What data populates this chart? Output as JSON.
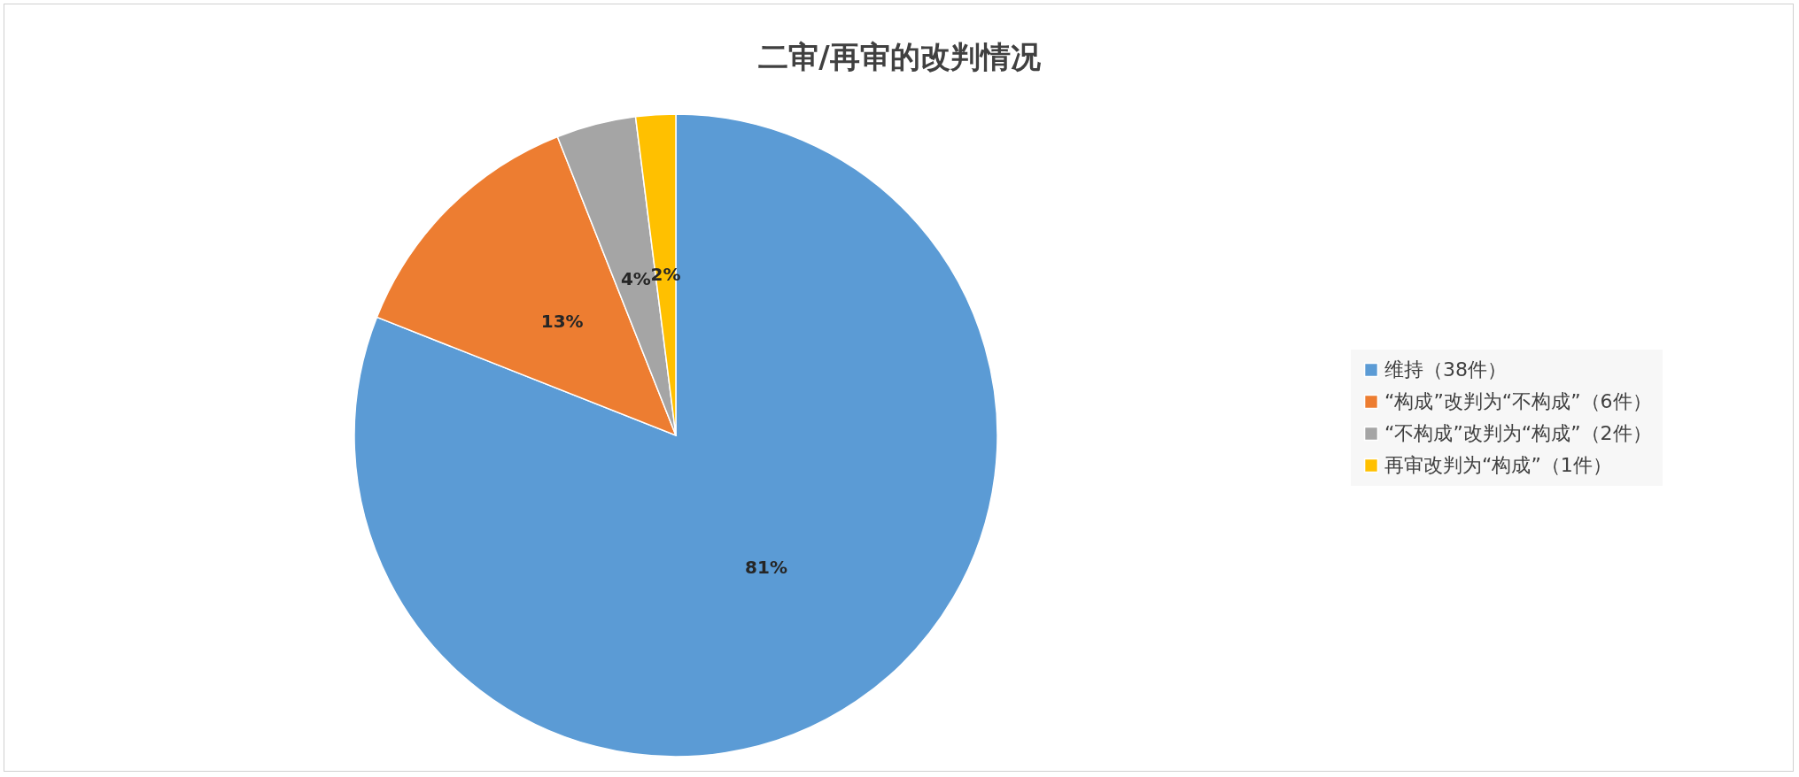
{
  "chart_data": {
    "type": "pie",
    "title": "二审/再审的改判情况",
    "categories": [
      "维持（38件）",
      "“构成”改判为“不构成”（6件）",
      "“不构成”改判为“构成”（2件）",
      "再审改判为“构成”（1件）"
    ],
    "values": [
      81,
      13,
      4,
      2
    ],
    "colors": [
      "#5b9bd5",
      "#ed7d31",
      "#a5a5a5",
      "#ffc000"
    ],
    "value_labels": [
      "81%",
      "13%",
      "4%",
      "2%"
    ],
    "legend": "right"
  }
}
